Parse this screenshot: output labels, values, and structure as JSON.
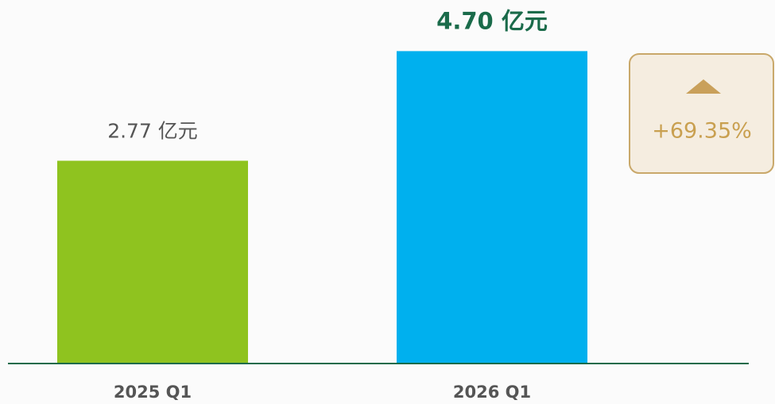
{
  "chart_data": {
    "type": "bar",
    "categories": [
      "2025 Q1",
      "2026 Q1"
    ],
    "series": [
      {
        "name": null,
        "values": [
          2.77,
          4.7
        ],
        "value_labels": [
          "2.77 亿元",
          "4.70 亿元"
        ]
      }
    ],
    "colors": [
      "#8fc31f",
      "#00b0ee"
    ],
    "ylim": [
      -0.8,
      5.6
    ],
    "annotation": "+69.35%"
  }
}
